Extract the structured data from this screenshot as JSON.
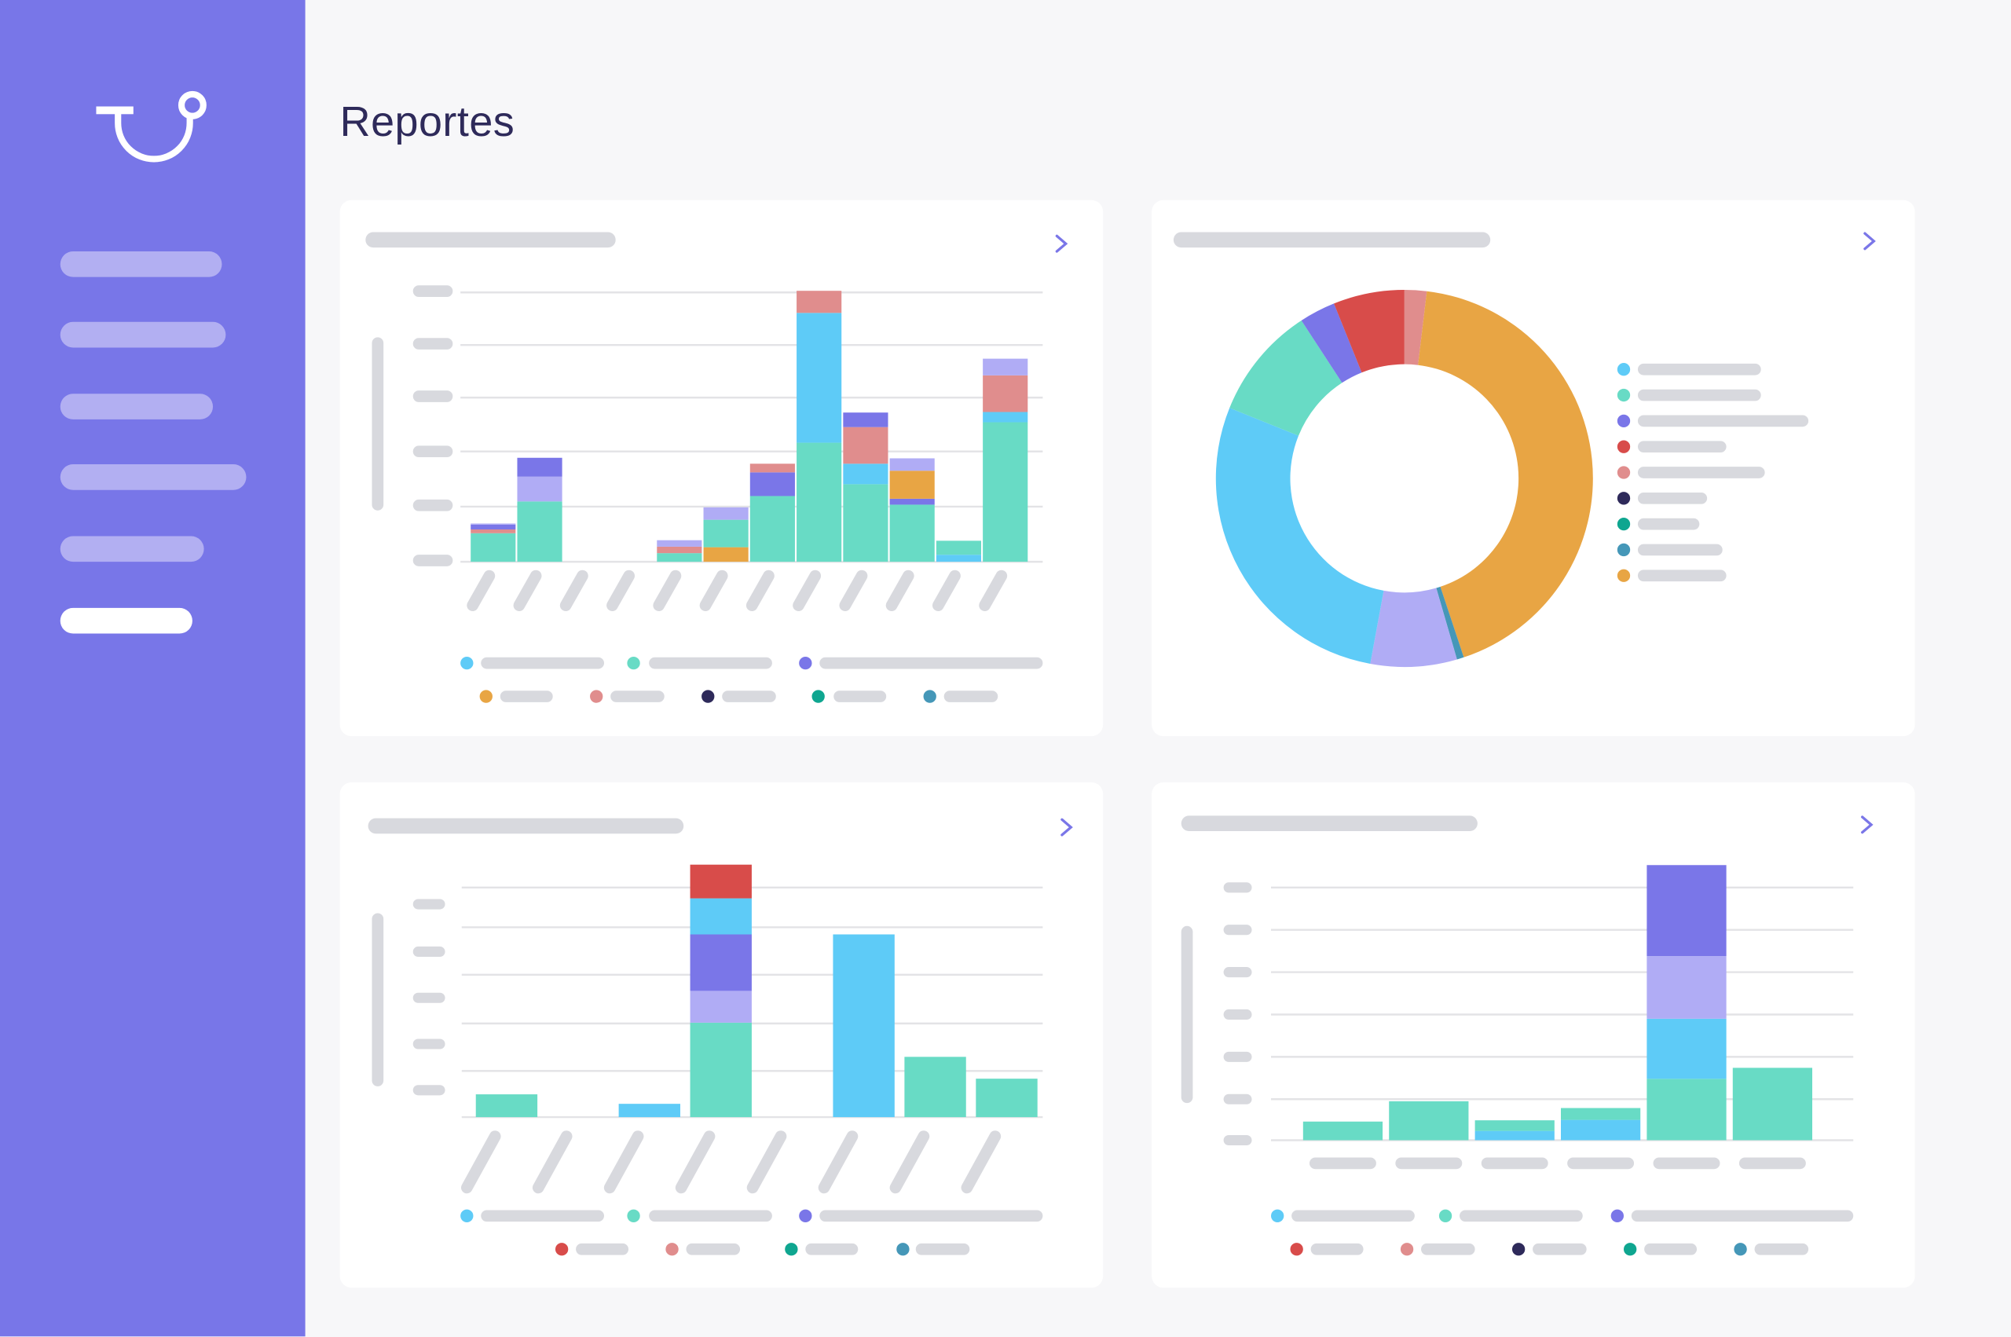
{
  "page": {
    "title": "Reportes"
  },
  "sidebar": {
    "items": [
      {
        "active": false
      },
      {
        "active": false
      },
      {
        "active": false
      },
      {
        "active": false
      },
      {
        "active": false
      },
      {
        "active": true
      }
    ]
  },
  "colors": {
    "sidebar": "#7876e8",
    "title": "#2e2a5a",
    "placeholder": "#d8d9de",
    "gridline": "#e3e3e6",
    "accent": "#7a76e8",
    "blue": "#5ecbf7",
    "teal": "#68dbc5",
    "purple": "#7a76e8",
    "lavender": "#b0acf5",
    "red": "#d84c4a",
    "pink": "#e08d8d",
    "navy": "#2e2a5a",
    "green": "#0fa690",
    "steel": "#4597b8",
    "orange": "#e8a544"
  },
  "icons": {
    "logo": "stethoscope-logo",
    "card_link": "chevron-right-icon"
  },
  "chart_data": [
    {
      "type": "bar",
      "stacked": true,
      "grid": true,
      "ylim": [
        0,
        5
      ],
      "legend": [
        "blue",
        "teal",
        "purple",
        "orange",
        "pink",
        "navy",
        "green",
        "steel"
      ],
      "legend_placement": "bottom",
      "bars": [
        [
          {
            "c": "teal",
            "v": 0.53
          },
          {
            "c": "pink",
            "v": 0.07
          },
          {
            "c": "purple",
            "v": 0.09
          },
          {
            "c": "lavender",
            "v": 0.02
          }
        ],
        [
          {
            "c": "teal",
            "v": 1.12
          },
          {
            "c": "lavender",
            "v": 0.46
          },
          {
            "c": "purple",
            "v": 0.35
          }
        ],
        [],
        [],
        [
          {
            "c": "teal",
            "v": 0.16
          },
          {
            "c": "pink",
            "v": 0.12
          },
          {
            "c": "lavender",
            "v": 0.12
          }
        ],
        [
          {
            "c": "orange",
            "v": 0.27
          },
          {
            "c": "teal",
            "v": 0.51
          },
          {
            "c": "lavender",
            "v": 0.23
          }
        ],
        [
          {
            "c": "teal",
            "v": 1.22
          },
          {
            "c": "purple",
            "v": 0.44
          },
          {
            "c": "pink",
            "v": 0.16
          }
        ],
        [
          {
            "c": "teal",
            "v": 2.21
          },
          {
            "c": "blue",
            "v": 2.41
          },
          {
            "c": "pink",
            "v": 0.41
          }
        ],
        [
          {
            "c": "teal",
            "v": 1.44
          },
          {
            "c": "blue",
            "v": 0.38
          },
          {
            "c": "pink",
            "v": 0.68
          },
          {
            "c": "purple",
            "v": 0.27
          }
        ],
        [
          {
            "c": "teal",
            "v": 1.06
          },
          {
            "c": "purple",
            "v": 0.11
          },
          {
            "c": "orange",
            "v": 0.52
          },
          {
            "c": "lavender",
            "v": 0.23
          }
        ],
        [
          {
            "c": "blue",
            "v": 0.13
          },
          {
            "c": "teal",
            "v": 0.26
          }
        ],
        [
          {
            "c": "teal",
            "v": 2.59
          },
          {
            "c": "blue",
            "v": 0.19
          },
          {
            "c": "pink",
            "v": 0.68
          },
          {
            "c": "lavender",
            "v": 0.31
          }
        ]
      ]
    },
    {
      "type": "pie",
      "donut": true,
      "legend": [
        "blue",
        "teal",
        "purple",
        "red",
        "pink",
        "navy",
        "green",
        "steel",
        "orange"
      ],
      "legend_placement": "right",
      "slices": [
        {
          "c": "pink",
          "pct": 1.9
        },
        {
          "c": "orange",
          "pct": 43.0
        },
        {
          "c": "steel",
          "pct": 0.6
        },
        {
          "c": "lavender",
          "pct": 7.4
        },
        {
          "c": "blue",
          "pct": 28.2
        },
        {
          "c": "teal",
          "pct": 9.7
        },
        {
          "c": "purple",
          "pct": 3.1
        },
        {
          "c": "red",
          "pct": 6.1
        }
      ]
    },
    {
      "type": "bar",
      "stacked": true,
      "grid": true,
      "ylim": [
        0,
        5
      ],
      "legend": [
        "blue",
        "teal",
        "purple",
        "red",
        "pink",
        "green",
        "steel"
      ],
      "legend_placement": "bottom",
      "bars": [
        [
          {
            "c": "teal",
            "v": 0.48
          }
        ],
        [],
        [
          {
            "c": "blue",
            "v": 0.28
          }
        ],
        [
          {
            "c": "teal",
            "v": 1.99
          },
          {
            "c": "lavender",
            "v": 0.67
          },
          {
            "c": "purple",
            "v": 1.19
          },
          {
            "c": "blue",
            "v": 0.76
          },
          {
            "c": "red",
            "v": 0.71
          }
        ],
        [],
        [
          {
            "c": "blue",
            "v": 3.85
          }
        ],
        [
          {
            "c": "teal",
            "v": 1.27
          }
        ],
        [
          {
            "c": "teal",
            "v": 0.81
          }
        ]
      ]
    },
    {
      "type": "bar",
      "stacked": true,
      "grid": true,
      "ylim": [
        0,
        6
      ],
      "legend": [
        "blue",
        "teal",
        "purple",
        "red",
        "pink",
        "navy",
        "green",
        "steel"
      ],
      "legend_placement": "bottom",
      "bars": [
        [
          {
            "c": "teal",
            "v": 0.44
          }
        ],
        [
          {
            "c": "teal",
            "v": 0.92
          }
        ],
        [
          {
            "c": "blue",
            "v": 0.22
          },
          {
            "c": "teal",
            "v": 0.25
          }
        ],
        [
          {
            "c": "blue",
            "v": 0.48
          },
          {
            "c": "teal",
            "v": 0.28
          }
        ],
        [
          {
            "c": "teal",
            "v": 1.45
          },
          {
            "c": "blue",
            "v": 1.42
          },
          {
            "c": "lavender",
            "v": 1.48
          },
          {
            "c": "purple",
            "v": 2.15
          }
        ],
        [
          {
            "c": "teal",
            "v": 1.71
          }
        ]
      ]
    }
  ]
}
